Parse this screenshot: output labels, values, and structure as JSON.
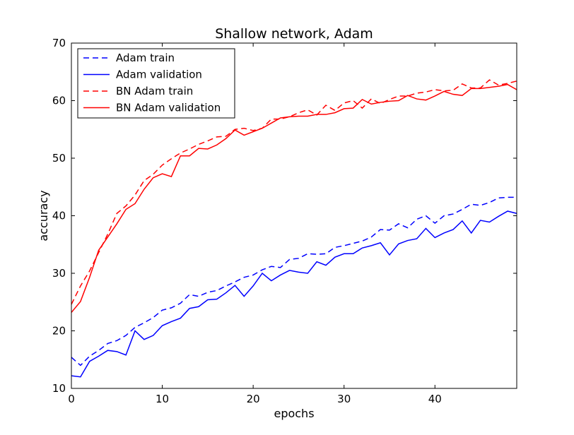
{
  "chart_data": {
    "type": "line",
    "title": "Shallow network, Adam",
    "xlabel": "epochs",
    "ylabel": "accuracy",
    "xlim": [
      0,
      49
    ],
    "ylim": [
      10,
      70
    ],
    "xticks": [
      0,
      10,
      20,
      30,
      40
    ],
    "yticks": [
      10,
      20,
      30,
      40,
      50,
      60,
      70
    ],
    "grid": false,
    "legend_position": "top-left",
    "x": [
      0,
      1,
      2,
      3,
      4,
      5,
      6,
      7,
      8,
      9,
      10,
      11,
      12,
      13,
      14,
      15,
      16,
      17,
      18,
      19,
      20,
      21,
      22,
      23,
      24,
      25,
      26,
      27,
      28,
      29,
      30,
      31,
      32,
      33,
      34,
      35,
      36,
      37,
      38,
      39,
      40,
      41,
      42,
      43,
      44,
      45,
      46,
      47,
      48,
      49
    ],
    "series": [
      {
        "name": "Adam train",
        "color": "#0000ff",
        "style": "dashed",
        "values": [
          15.4,
          14.0,
          15.6,
          16.6,
          17.8,
          18.3,
          19.2,
          20.6,
          21.4,
          22.3,
          23.6,
          24.0,
          24.8,
          26.3,
          26.0,
          26.7,
          27.0,
          27.8,
          28.5,
          29.3,
          29.7,
          30.6,
          31.2,
          31.0,
          32.4,
          32.6,
          33.4,
          33.3,
          33.4,
          34.5,
          34.8,
          35.2,
          35.6,
          36.3,
          37.6,
          37.5,
          38.6,
          37.9,
          39.4,
          40.0,
          38.7,
          40.0,
          40.3,
          41.1,
          42.0,
          41.8,
          42.3,
          43.1,
          43.2,
          43.2
        ]
      },
      {
        "name": "Adam validation",
        "color": "#0000ff",
        "style": "solid",
        "values": [
          12.2,
          12.0,
          14.7,
          15.6,
          16.6,
          16.4,
          15.8,
          20.0,
          18.5,
          19.2,
          20.9,
          21.6,
          22.2,
          23.9,
          24.2,
          25.4,
          25.5,
          26.6,
          27.9,
          26.0,
          27.8,
          30.0,
          28.7,
          29.7,
          30.5,
          30.2,
          30.0,
          32.0,
          31.4,
          32.8,
          33.4,
          33.4,
          34.4,
          34.8,
          35.3,
          33.2,
          35.1,
          35.7,
          36.0,
          37.8,
          36.2,
          37.0,
          37.6,
          39.1,
          37.0,
          39.2,
          38.9,
          39.9,
          40.8,
          40.4
        ]
      },
      {
        "name": "BN Adam train",
        "color": "#ff0000",
        "style": "dashed",
        "values": [
          24.6,
          27.8,
          30.4,
          33.6,
          36.8,
          40.4,
          41.7,
          43.6,
          46.1,
          47.2,
          48.8,
          49.9,
          50.9,
          51.6,
          52.4,
          53.0,
          53.7,
          53.8,
          55.0,
          55.2,
          54.8,
          55.2,
          56.8,
          56.8,
          57.2,
          57.9,
          58.4,
          57.5,
          59.2,
          58.3,
          59.6,
          60.0,
          58.7,
          60.3,
          59.5,
          60.2,
          60.8,
          60.8,
          61.3,
          61.5,
          61.9,
          61.7,
          61.8,
          62.9,
          62.2,
          62.2,
          63.6,
          62.7,
          63.0,
          63.4
        ]
      },
      {
        "name": "BN Adam validation",
        "color": "#ff0000",
        "style": "solid",
        "values": [
          23.2,
          25.1,
          29.3,
          34.0,
          36.3,
          38.6,
          41.1,
          42.1,
          44.6,
          46.6,
          47.3,
          46.8,
          50.4,
          50.4,
          51.7,
          51.6,
          52.3,
          53.4,
          54.9,
          54.0,
          54.6,
          55.2,
          56.1,
          57.0,
          57.2,
          57.3,
          57.3,
          57.6,
          57.6,
          57.9,
          58.6,
          58.7,
          60.2,
          59.4,
          59.7,
          59.9,
          60.0,
          60.9,
          60.3,
          60.1,
          60.8,
          61.6,
          61.1,
          60.9,
          62.1,
          62.1,
          62.3,
          62.5,
          62.8,
          61.9
        ]
      }
    ]
  }
}
